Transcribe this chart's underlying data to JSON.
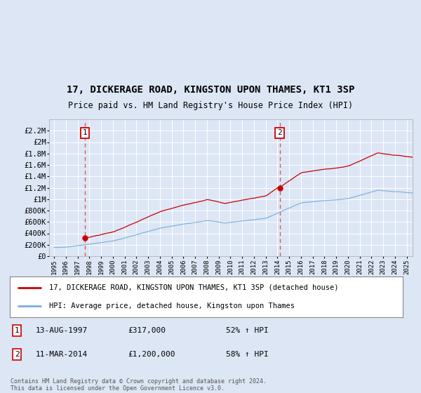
{
  "title": "17, DICKERAGE ROAD, KINGSTON UPON THAMES, KT1 3SP",
  "subtitle": "Price paid vs. HM Land Registry's House Price Index (HPI)",
  "background_color": "#dce6f5",
  "plot_bg_color": "#dce6f5",
  "hpi_line_color": "#7aaddb",
  "price_line_color": "#cc0000",
  "grid_color": "#ffffff",
  "ylim": [
    0,
    2400000
  ],
  "xlim_min": 1994.58,
  "xlim_max": 2025.5,
  "yticks": [
    0,
    200000,
    400000,
    600000,
    800000,
    1000000,
    1200000,
    1400000,
    1600000,
    1800000,
    2000000,
    2200000
  ],
  "ytick_labels": [
    "£0",
    "£200K",
    "£400K",
    "£600K",
    "£800K",
    "£1M",
    "£1.2M",
    "£1.4M",
    "£1.6M",
    "£1.8M",
    "£2M",
    "£2.2M"
  ],
  "sale1_year": 1997.62,
  "sale1_price": 317000,
  "sale2_year": 2014.19,
  "sale2_price": 1200000,
  "legend_label_red": "17, DICKERAGE ROAD, KINGSTON UPON THAMES, KT1 3SP (detached house)",
  "legend_label_blue": "HPI: Average price, detached house, Kingston upon Thames",
  "annotation1_date": "13-AUG-1997",
  "annotation1_price": "£317,000",
  "annotation1_hpi": "52% ↑ HPI",
  "annotation2_date": "11-MAR-2014",
  "annotation2_price": "£1,200,000",
  "annotation2_hpi": "58% ↑ HPI",
  "footer": "Contains HM Land Registry data © Crown copyright and database right 2024.\nThis data is licensed under the Open Government Licence v3.0."
}
